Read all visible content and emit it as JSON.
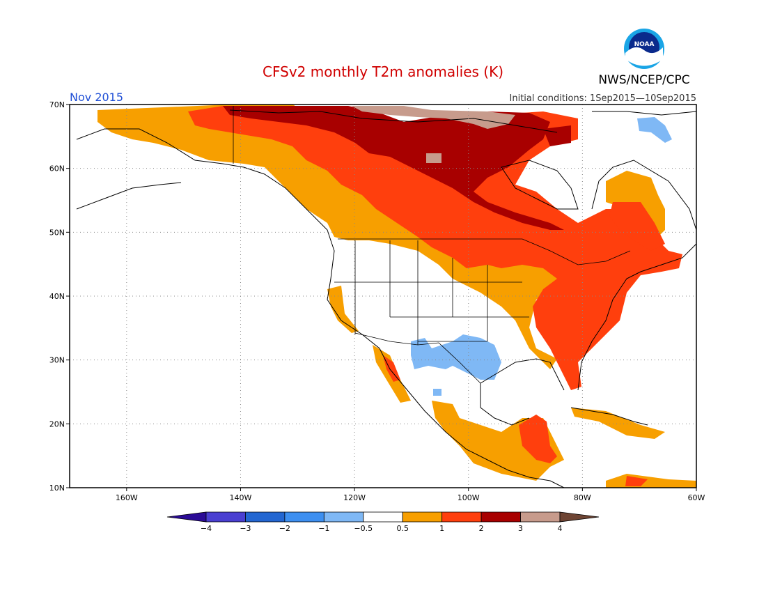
{
  "title": "CFSv2 monthly T2m anomalies (K)",
  "month_label": "Nov 2015",
  "agency": "NWS/NCEP/CPC",
  "logo_text": "NOAA",
  "init_conditions": "Initial conditions: 1Sep2015—10Sep2015",
  "colors": {
    "title": "#d00000",
    "month": "#1f4fd6",
    "land_outline": "#000000",
    "grid": "#888888"
  },
  "axes": {
    "lat_ticks": [
      {
        "value": 70,
        "label": "70N"
      },
      {
        "value": 60,
        "label": "60N"
      },
      {
        "value": 50,
        "label": "50N"
      },
      {
        "value": 40,
        "label": "40N"
      },
      {
        "value": 30,
        "label": "30N"
      },
      {
        "value": 20,
        "label": "20N"
      },
      {
        "value": 10,
        "label": "10N"
      }
    ],
    "lon_ticks": [
      {
        "value": -160,
        "label": "160W"
      },
      {
        "value": -140,
        "label": "140W"
      },
      {
        "value": -120,
        "label": "120W"
      },
      {
        "value": -100,
        "label": "100W"
      },
      {
        "value": -80,
        "label": "80W"
      },
      {
        "value": -60,
        "label": "60W"
      }
    ],
    "lon_range": [
      -170,
      -60
    ],
    "lat_range": [
      10,
      70
    ],
    "grid": "dotted"
  },
  "colorbar": {
    "bins": [
      {
        "color": "#2b0b96"
      },
      {
        "color": "#4a3fd1"
      },
      {
        "color": "#2366d1"
      },
      {
        "color": "#3d8ff0"
      },
      {
        "color": "#7fb8f5"
      },
      {
        "color": "#ffffff"
      },
      {
        "color": "#f79f00"
      },
      {
        "color": "#ff3f0d"
      },
      {
        "color": "#a80000"
      },
      {
        "color": "#c79b8c"
      },
      {
        "color": "#6e4433"
      }
    ],
    "labels": [
      "−4",
      "−3",
      "−2",
      "−1",
      "−0.5",
      "0.5",
      "1",
      "2",
      "3",
      "4"
    ]
  },
  "anomaly_regions": [
    {
      "category": "+0.5 to 1",
      "color": "#f79f00"
    },
    {
      "category": "+1 to 2",
      "color": "#ff3f0d"
    },
    {
      "category": "+2 to 3",
      "color": "#a80000"
    },
    {
      "category": "+3 to 4",
      "color": "#c79b8c"
    },
    {
      "category": "-1 to -0.5",
      "color": "#7fb8f5"
    }
  ]
}
